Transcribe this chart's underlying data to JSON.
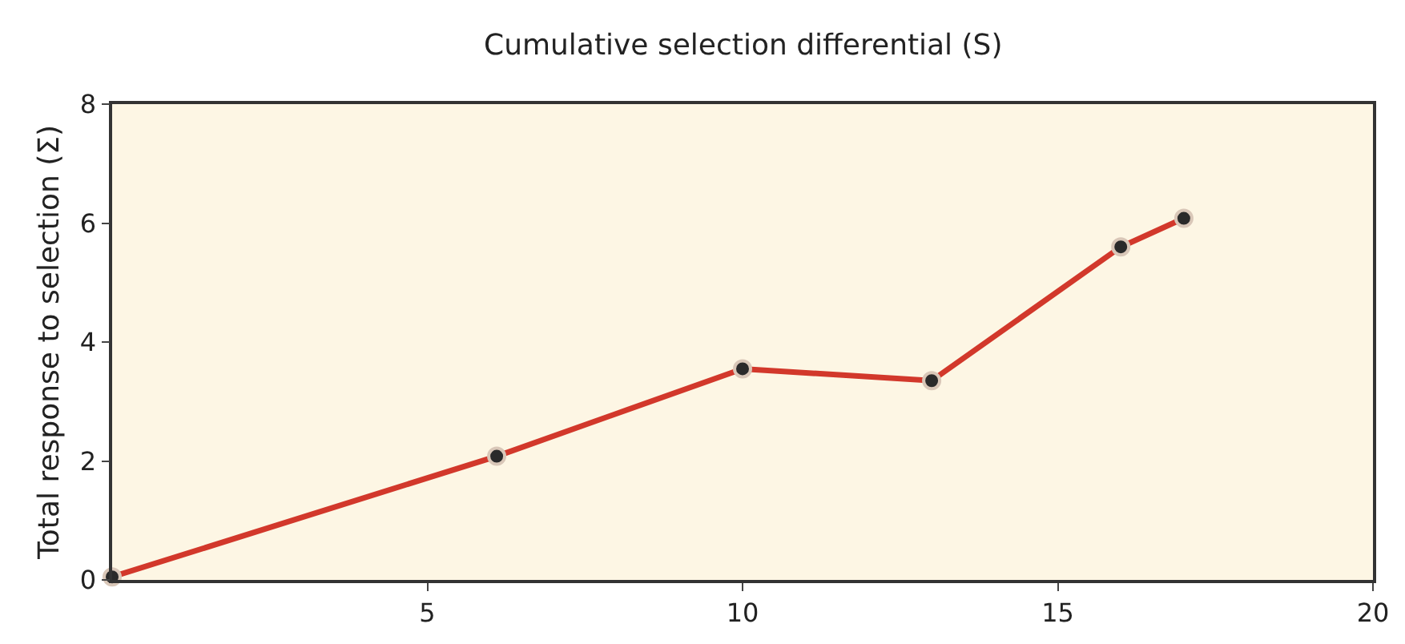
{
  "chart_data": {
    "type": "line",
    "xlabel": "Cumulative selection differential (S)",
    "ylabel": "Total response to selection (Σ)",
    "x": [
      0,
      6.1,
      10,
      13,
      16,
      17
    ],
    "series": [
      {
        "color": "#d2382b",
        "values": [
          0.05,
          2.08,
          3.55,
          3.35,
          5.6,
          6.08
        ]
      }
    ],
    "xlim": [
      0,
      20
    ],
    "xticks": [
      5,
      10,
      15,
      20
    ],
    "ylim": [
      0,
      8
    ],
    "yticks": [
      0,
      2,
      4,
      6,
      8
    ],
    "grid": false,
    "marker": "circle",
    "line_style": "solid"
  }
}
